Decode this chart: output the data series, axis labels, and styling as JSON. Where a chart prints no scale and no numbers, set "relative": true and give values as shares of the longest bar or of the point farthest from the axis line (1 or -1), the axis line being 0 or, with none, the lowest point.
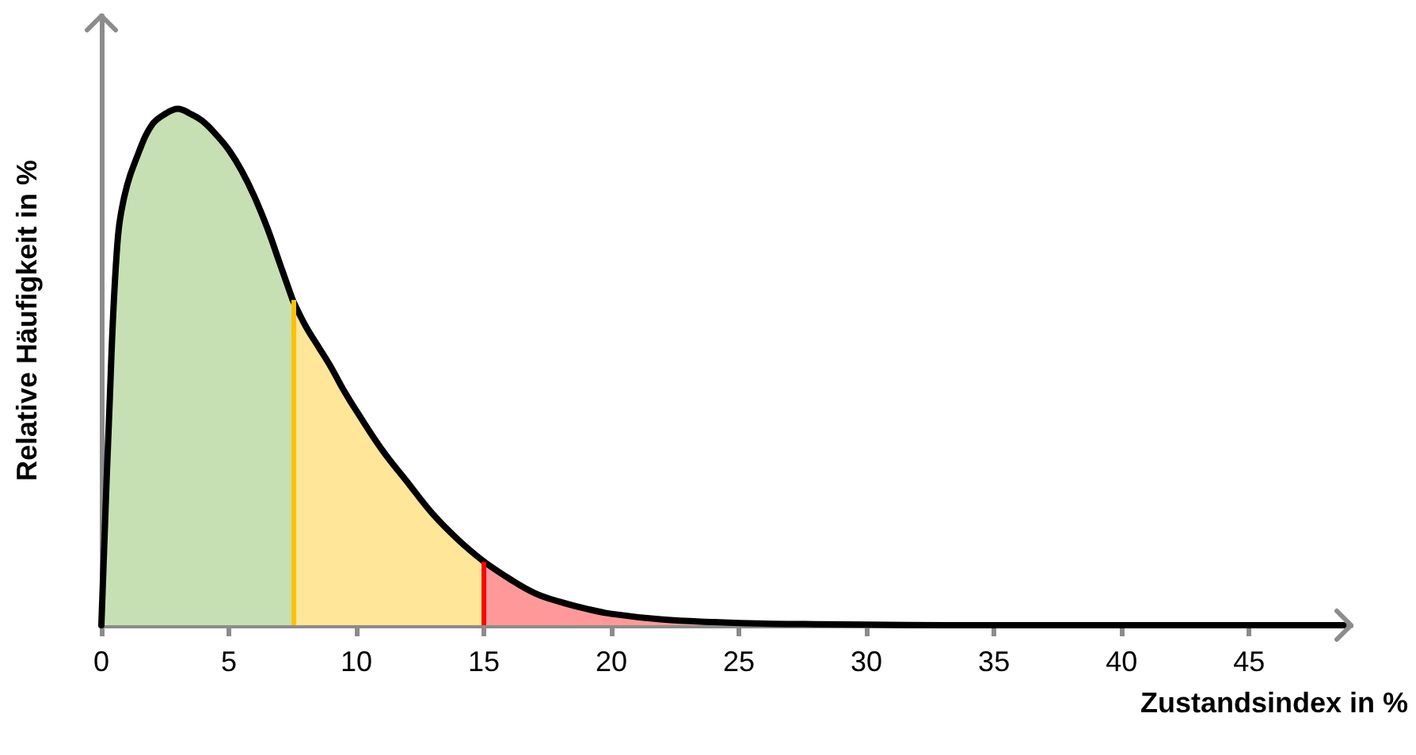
{
  "chart_data": {
    "type": "area",
    "relative": true,
    "xlabel": "Zustandsindex in %",
    "ylabel": "Relative Häufigkeit in %",
    "xlim": [
      0,
      49
    ],
    "xticks": [
      0,
      5,
      10,
      15,
      20,
      25,
      30,
      35,
      40,
      45
    ],
    "grid": false,
    "series": [
      {
        "color": "#c6e0b4",
        "x": [
          0,
          0.3,
          0.6,
          0.9,
          1.5,
          2,
          2.5,
          3,
          3.5,
          4,
          4.5,
          5,
          5.5,
          6,
          6.5,
          7,
          7.5
        ],
        "values": [
          0,
          0.4,
          0.72,
          0.83,
          0.92,
          0.97,
          0.99,
          1.0,
          0.99,
          0.975,
          0.95,
          0.92,
          0.88,
          0.83,
          0.77,
          0.7,
          0.63
        ]
      },
      {
        "color": "#ffe699",
        "x": [
          7.5,
          8,
          8.5,
          9,
          9.5,
          10,
          11,
          12,
          13,
          14,
          15
        ],
        "values": [
          0.63,
          0.58,
          0.54,
          0.5,
          0.455,
          0.415,
          0.34,
          0.277,
          0.215,
          0.165,
          0.123
        ]
      },
      {
        "color": "#ff9999",
        "x": [
          15,
          16,
          17,
          18,
          19,
          20,
          22,
          24,
          26,
          28,
          30,
          33,
          36,
          40,
          45,
          48.7
        ],
        "values": [
          0.123,
          0.09,
          0.062,
          0.045,
          0.032,
          0.022,
          0.011,
          0.006,
          0.003,
          0.002,
          0.001,
          0,
          0,
          0,
          0,
          0
        ]
      }
    ],
    "ref_lines": [
      {
        "axis": "x",
        "value": 7.5,
        "color": "#ffc000"
      },
      {
        "axis": "x",
        "value": 15,
        "color": "#ff0000"
      }
    ]
  }
}
